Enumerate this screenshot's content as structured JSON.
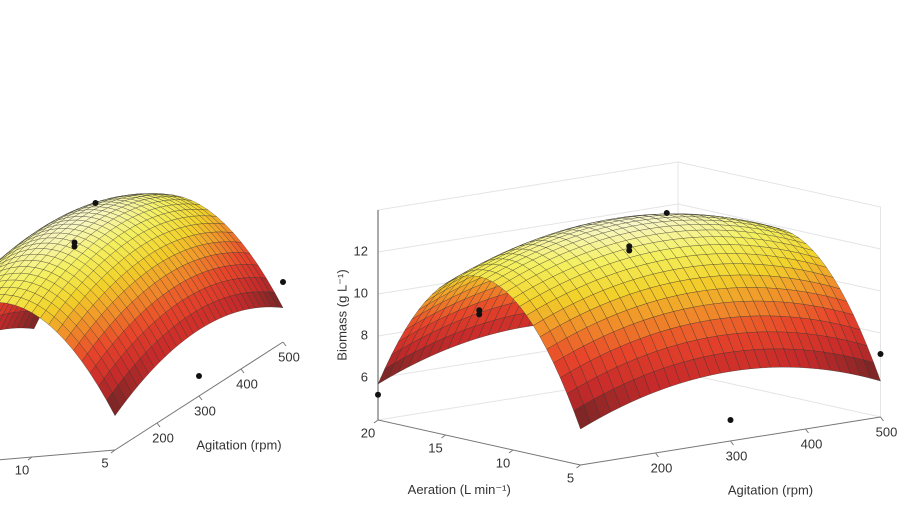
{
  "chart_data": [
    {
      "type": "surface",
      "xlabel": "Agitation (rpm)",
      "xlim": [
        100,
        500
      ],
      "xticks": [
        200,
        300,
        400,
        500
      ],
      "ylim": [
        5,
        20
      ],
      "yticks": [
        5,
        10
      ]
    },
    {
      "type": "surface",
      "xlabel": "Agitation (rpm)",
      "ylabel": "Aeration (L min⁻¹)",
      "zlabel": "Biomass (g L⁻¹)",
      "xlim": [
        100,
        500
      ],
      "xticks": [
        200,
        300,
        400,
        500
      ],
      "ylim": [
        5,
        20
      ],
      "yticks": [
        20,
        15,
        10,
        5
      ],
      "zlim": [
        4,
        14
      ],
      "zticks": [
        6,
        8,
        10,
        12
      ],
      "points": {
        "x": [
          100,
          100,
          100,
          300,
          300,
          350,
          500,
          300
        ],
        "y": [
          20,
          12.5,
          12.5,
          12.5,
          12.5,
          12.5,
          5,
          5
        ],
        "z": [
          5.2,
          10.1,
          10.3,
          12.0,
          12.2,
          13.5,
          7.0,
          5.0
        ]
      }
    }
  ]
}
